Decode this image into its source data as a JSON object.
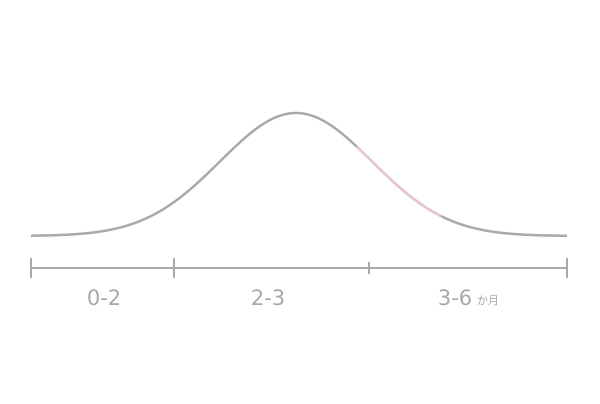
{
  "segments": [
    {
      "label": "0-2"
    },
    {
      "label": "2-3"
    },
    {
      "label": "3-6",
      "unit": "か月"
    }
  ]
}
